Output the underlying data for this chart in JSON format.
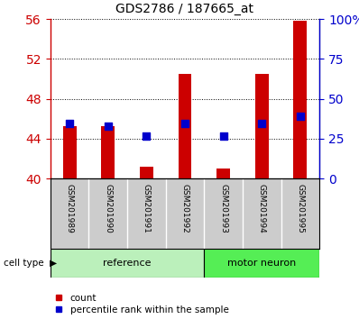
{
  "title": "GDS2786 / 187665_at",
  "samples": [
    "GSM201989",
    "GSM201990",
    "GSM201991",
    "GSM201992",
    "GSM201993",
    "GSM201994",
    "GSM201995"
  ],
  "groups": [
    "reference",
    "reference",
    "reference",
    "reference",
    "motor neuron",
    "motor neuron",
    "motor neuron"
  ],
  "count_values": [
    45.3,
    45.3,
    41.2,
    50.5,
    41.0,
    50.5,
    55.8
  ],
  "percentile_values": [
    45.5,
    45.3,
    44.3,
    45.5,
    44.3,
    45.5,
    46.3
  ],
  "ylim_left": [
    40,
    56
  ],
  "yticks_left": [
    40,
    44,
    48,
    52,
    56
  ],
  "yticks_right": [
    0,
    25,
    50,
    75,
    100
  ],
  "ylim_right": [
    0,
    100
  ],
  "left_axis_color": "#cc0000",
  "right_axis_color": "#0000cc",
  "bar_color": "#cc0000",
  "dot_color": "#0000cc",
  "group_colors": {
    "reference": "#bbf0bb",
    "motor neuron": "#55ee55"
  },
  "group_label": "cell type",
  "legend_count": "count",
  "legend_percentile": "percentile rank within the sample",
  "bar_width": 0.35,
  "dot_size": 35,
  "label_bg_color": "#cccccc",
  "label_sep_color": "#ffffff"
}
